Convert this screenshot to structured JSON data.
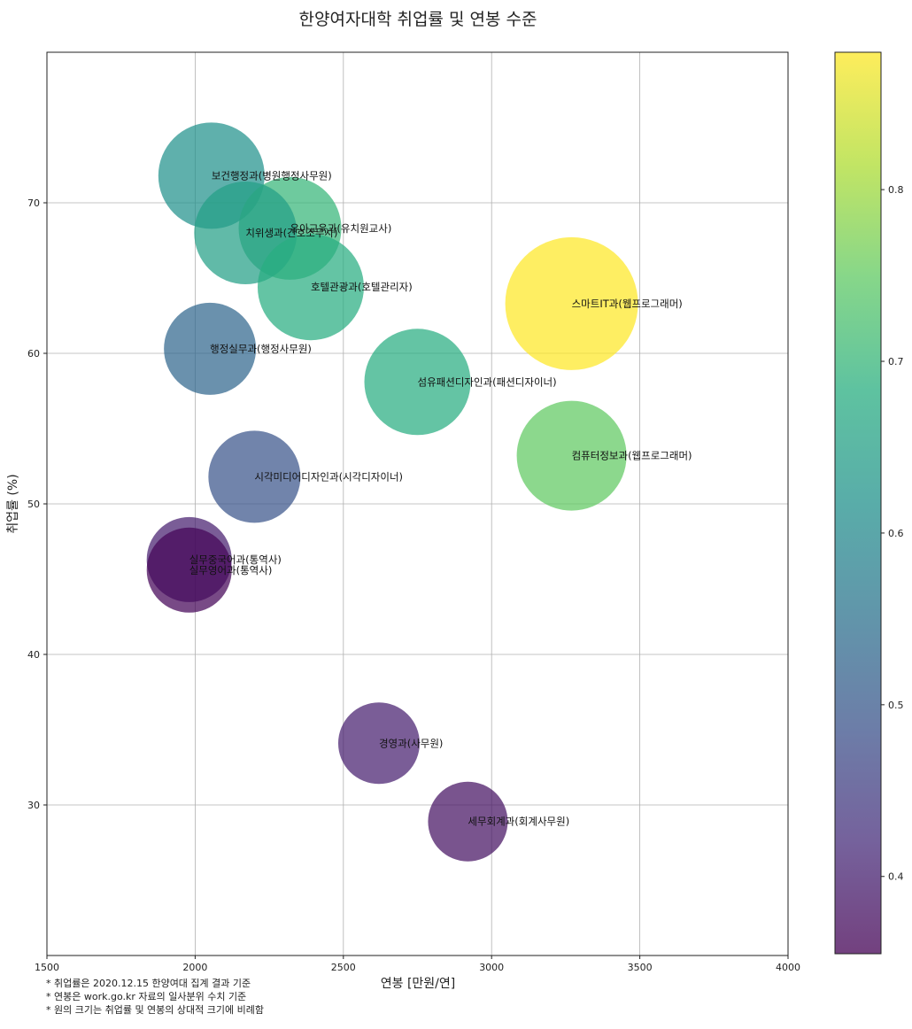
{
  "chart_data": {
    "type": "scatter",
    "title": "한양여자대학 취업률 및 연봉 수준",
    "xlabel": "연봉 [만원/연]",
    "ylabel": "취업률 (%)",
    "xlim": [
      1500,
      4000
    ],
    "ylim": [
      20,
      80
    ],
    "xticks": [
      1500,
      2000,
      2500,
      3000,
      3500,
      4000
    ],
    "yticks": [
      30,
      40,
      50,
      60,
      70
    ],
    "grid": true,
    "colormap": "viridis",
    "colorbar": {
      "range": [
        0.355,
        0.88
      ],
      "ticks": [
        0.4,
        0.5,
        0.6,
        0.7,
        0.8
      ]
    },
    "points": [
      {
        "label": "보건행정과(병원행정사무원)",
        "x": 2055,
        "y": 71.8,
        "size": 0.6,
        "color_value": 0.62
      },
      {
        "label": "유아교육과(유치원교사)",
        "x": 2320,
        "y": 68.3,
        "size": 0.58,
        "color_value": 0.7
      },
      {
        "label": "치위생과(간호조무사)",
        "x": 2170,
        "y": 68.0,
        "size": 0.58,
        "color_value": 0.65
      },
      {
        "label": "호텔관광과(호텔관리자)",
        "x": 2390,
        "y": 64.4,
        "size": 0.6,
        "color_value": 0.68
      },
      {
        "label": "스마트IT과(웹프로그래머)",
        "x": 3270,
        "y": 63.3,
        "size": 0.75,
        "color_value": 0.88
      },
      {
        "label": "행정실무과(행정사무원)",
        "x": 2050,
        "y": 60.3,
        "size": 0.52,
        "color_value": 0.53
      },
      {
        "label": "섬유패션디자인과(패션디자이너)",
        "x": 2750,
        "y": 58.1,
        "size": 0.6,
        "color_value": 0.68
      },
      {
        "label": "컴퓨터정보과(웹프로그래머)",
        "x": 3270,
        "y": 53.2,
        "size": 0.62,
        "color_value": 0.75
      },
      {
        "label": "시각미디어디자인과(시각디자이너)",
        "x": 2200,
        "y": 51.8,
        "size": 0.52,
        "color_value": 0.49
      },
      {
        "label": "실무중국어과(통역사)",
        "x": 1980,
        "y": 46.3,
        "size": 0.48,
        "color_value": 0.4
      },
      {
        "label": "실무영어과(통역사)",
        "x": 1980,
        "y": 45.6,
        "size": 0.48,
        "color_value": 0.36
      },
      {
        "label": "경영과(사무원)",
        "x": 2620,
        "y": 34.1,
        "size": 0.46,
        "color_value": 0.4
      },
      {
        "label": "세무회계과(회계사무원)",
        "x": 2920,
        "y": 28.9,
        "size": 0.45,
        "color_value": 0.38
      }
    ],
    "notes": [
      "* 취업률은 2020.12.15 한양여대 집계 결과 기준",
      "* 연봉은 work.go.kr 자료의 일사분위 수치 기준",
      "* 원의 크기는 취업률 및 연봉의 상대적 크기에 비례함"
    ]
  }
}
